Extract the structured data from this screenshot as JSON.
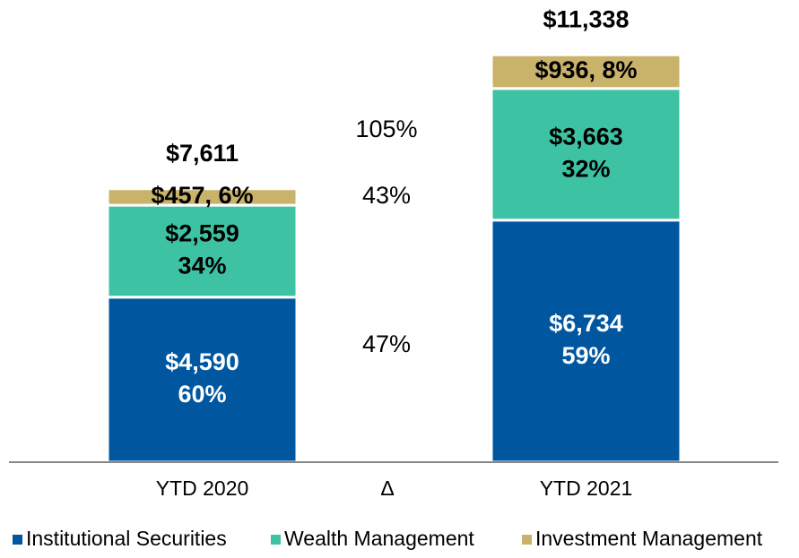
{
  "chart_data": {
    "type": "bar",
    "stacked": true,
    "categories": [
      "YTD 2020",
      "YTD 2021"
    ],
    "series": [
      {
        "name": "Institutional Securities",
        "color": "#0057A0",
        "values": [
          4590,
          6734
        ],
        "labels": [
          [
            "$4,590",
            "60%"
          ],
          [
            "$6,734",
            "59%"
          ]
        ],
        "label_color": "#ffffff"
      },
      {
        "name": "Wealth Management",
        "color": "#3DC3A3",
        "values": [
          2559,
          3663
        ],
        "labels": [
          [
            "$2,559",
            "34%"
          ],
          [
            "$3,663",
            "32%"
          ]
        ],
        "label_color": "#000000"
      },
      {
        "name": "Investment Management",
        "color": "#C9B26A",
        "values": [
          457,
          936
        ],
        "labels": [
          [
            "$457, 6%"
          ],
          [
            "$936, 8%"
          ]
        ],
        "label_color": "#000000"
      }
    ],
    "totals": [
      "$7,611",
      "$11,338"
    ],
    "delta": {
      "label": "Δ",
      "values": [
        "47%",
        "43%",
        "105%"
      ]
    },
    "ylim": [
      0,
      11338
    ],
    "legend_position": "bottom"
  }
}
